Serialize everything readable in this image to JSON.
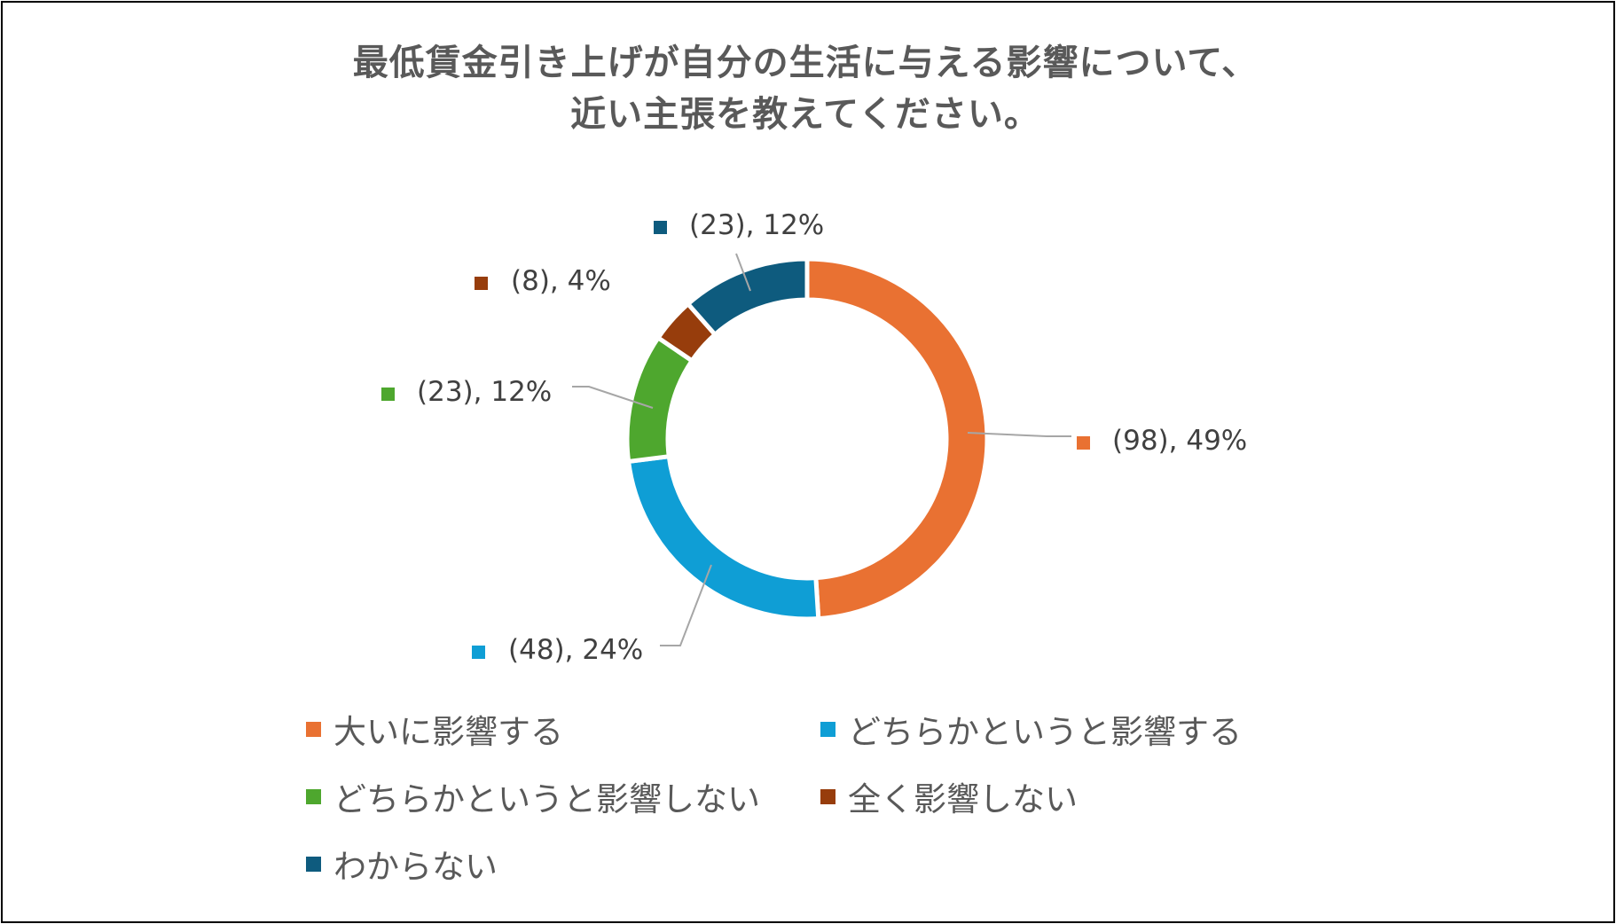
{
  "chart_data": {
    "type": "pie",
    "variant": "donut",
    "title_lines": [
      "最低賃金引き上げが自分の生活に与える影響について、",
      "近い主張を教えてください。"
    ],
    "slices": [
      {
        "name": "大いに影響する",
        "value": 98,
        "percent": 49,
        "label": "(98), 49%",
        "color": "#E97132"
      },
      {
        "name": "どちらかというと影響する",
        "value": 48,
        "percent": 24,
        "label": "(48), 24%",
        "color": "#0F9ED5"
      },
      {
        "name": "どちらかというと影響しない",
        "value": 23,
        "percent": 12,
        "label": "(23), 12%",
        "color": "#4EA72E"
      },
      {
        "name": "全く影響しない",
        "value": 8,
        "percent": 4,
        "label": "(8), 4%",
        "color": "#973D0C"
      },
      {
        "name": "わからない",
        "value": 23,
        "percent": 12,
        "label": "(23), 12%",
        "color": "#0E5B7E"
      }
    ],
    "legend_position": "bottom"
  }
}
